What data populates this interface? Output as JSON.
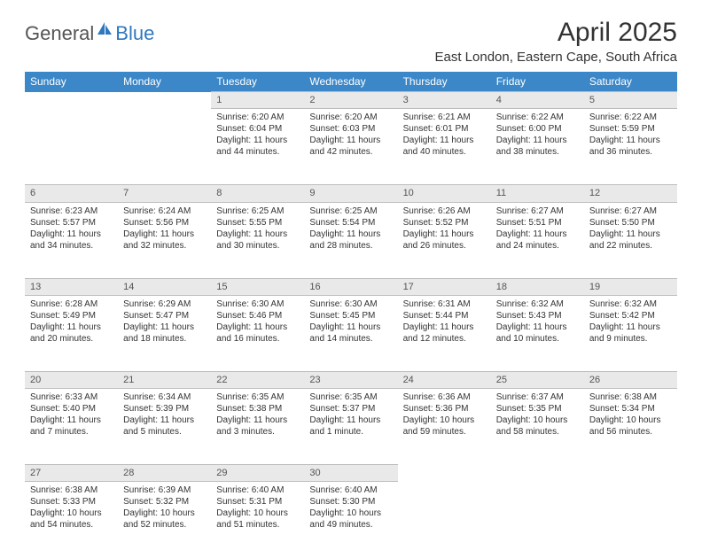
{
  "logo": {
    "text1": "General",
    "text2": "Blue"
  },
  "title": "April 2025",
  "location": "East London, Eastern Cape, South Africa",
  "colors": {
    "header_bg": "#3b87c8",
    "header_fg": "#ffffff",
    "daynum_bg": "#e9e9ea",
    "border": "#bdbdbd",
    "text": "#333333",
    "logo_gray": "#555555",
    "logo_blue": "#2f78bf"
  },
  "day_headers": [
    "Sunday",
    "Monday",
    "Tuesday",
    "Wednesday",
    "Thursday",
    "Friday",
    "Saturday"
  ],
  "weeks": [
    {
      "daynums": [
        "",
        "",
        "1",
        "2",
        "3",
        "4",
        "5"
      ],
      "cells": [
        null,
        null,
        {
          "sunrise": "Sunrise: 6:20 AM",
          "sunset": "Sunset: 6:04 PM",
          "daylight": "Daylight: 11 hours and 44 minutes."
        },
        {
          "sunrise": "Sunrise: 6:20 AM",
          "sunset": "Sunset: 6:03 PM",
          "daylight": "Daylight: 11 hours and 42 minutes."
        },
        {
          "sunrise": "Sunrise: 6:21 AM",
          "sunset": "Sunset: 6:01 PM",
          "daylight": "Daylight: 11 hours and 40 minutes."
        },
        {
          "sunrise": "Sunrise: 6:22 AM",
          "sunset": "Sunset: 6:00 PM",
          "daylight": "Daylight: 11 hours and 38 minutes."
        },
        {
          "sunrise": "Sunrise: 6:22 AM",
          "sunset": "Sunset: 5:59 PM",
          "daylight": "Daylight: 11 hours and 36 minutes."
        }
      ]
    },
    {
      "daynums": [
        "6",
        "7",
        "8",
        "9",
        "10",
        "11",
        "12"
      ],
      "cells": [
        {
          "sunrise": "Sunrise: 6:23 AM",
          "sunset": "Sunset: 5:57 PM",
          "daylight": "Daylight: 11 hours and 34 minutes."
        },
        {
          "sunrise": "Sunrise: 6:24 AM",
          "sunset": "Sunset: 5:56 PM",
          "daylight": "Daylight: 11 hours and 32 minutes."
        },
        {
          "sunrise": "Sunrise: 6:25 AM",
          "sunset": "Sunset: 5:55 PM",
          "daylight": "Daylight: 11 hours and 30 minutes."
        },
        {
          "sunrise": "Sunrise: 6:25 AM",
          "sunset": "Sunset: 5:54 PM",
          "daylight": "Daylight: 11 hours and 28 minutes."
        },
        {
          "sunrise": "Sunrise: 6:26 AM",
          "sunset": "Sunset: 5:52 PM",
          "daylight": "Daylight: 11 hours and 26 minutes."
        },
        {
          "sunrise": "Sunrise: 6:27 AM",
          "sunset": "Sunset: 5:51 PM",
          "daylight": "Daylight: 11 hours and 24 minutes."
        },
        {
          "sunrise": "Sunrise: 6:27 AM",
          "sunset": "Sunset: 5:50 PM",
          "daylight": "Daylight: 11 hours and 22 minutes."
        }
      ]
    },
    {
      "daynums": [
        "13",
        "14",
        "15",
        "16",
        "17",
        "18",
        "19"
      ],
      "cells": [
        {
          "sunrise": "Sunrise: 6:28 AM",
          "sunset": "Sunset: 5:49 PM",
          "daylight": "Daylight: 11 hours and 20 minutes."
        },
        {
          "sunrise": "Sunrise: 6:29 AM",
          "sunset": "Sunset: 5:47 PM",
          "daylight": "Daylight: 11 hours and 18 minutes."
        },
        {
          "sunrise": "Sunrise: 6:30 AM",
          "sunset": "Sunset: 5:46 PM",
          "daylight": "Daylight: 11 hours and 16 minutes."
        },
        {
          "sunrise": "Sunrise: 6:30 AM",
          "sunset": "Sunset: 5:45 PM",
          "daylight": "Daylight: 11 hours and 14 minutes."
        },
        {
          "sunrise": "Sunrise: 6:31 AM",
          "sunset": "Sunset: 5:44 PM",
          "daylight": "Daylight: 11 hours and 12 minutes."
        },
        {
          "sunrise": "Sunrise: 6:32 AM",
          "sunset": "Sunset: 5:43 PM",
          "daylight": "Daylight: 11 hours and 10 minutes."
        },
        {
          "sunrise": "Sunrise: 6:32 AM",
          "sunset": "Sunset: 5:42 PM",
          "daylight": "Daylight: 11 hours and 9 minutes."
        }
      ]
    },
    {
      "daynums": [
        "20",
        "21",
        "22",
        "23",
        "24",
        "25",
        "26"
      ],
      "cells": [
        {
          "sunrise": "Sunrise: 6:33 AM",
          "sunset": "Sunset: 5:40 PM",
          "daylight": "Daylight: 11 hours and 7 minutes."
        },
        {
          "sunrise": "Sunrise: 6:34 AM",
          "sunset": "Sunset: 5:39 PM",
          "daylight": "Daylight: 11 hours and 5 minutes."
        },
        {
          "sunrise": "Sunrise: 6:35 AM",
          "sunset": "Sunset: 5:38 PM",
          "daylight": "Daylight: 11 hours and 3 minutes."
        },
        {
          "sunrise": "Sunrise: 6:35 AM",
          "sunset": "Sunset: 5:37 PM",
          "daylight": "Daylight: 11 hours and 1 minute."
        },
        {
          "sunrise": "Sunrise: 6:36 AM",
          "sunset": "Sunset: 5:36 PM",
          "daylight": "Daylight: 10 hours and 59 minutes."
        },
        {
          "sunrise": "Sunrise: 6:37 AM",
          "sunset": "Sunset: 5:35 PM",
          "daylight": "Daylight: 10 hours and 58 minutes."
        },
        {
          "sunrise": "Sunrise: 6:38 AM",
          "sunset": "Sunset: 5:34 PM",
          "daylight": "Daylight: 10 hours and 56 minutes."
        }
      ]
    },
    {
      "daynums": [
        "27",
        "28",
        "29",
        "30",
        "",
        "",
        ""
      ],
      "cells": [
        {
          "sunrise": "Sunrise: 6:38 AM",
          "sunset": "Sunset: 5:33 PM",
          "daylight": "Daylight: 10 hours and 54 minutes."
        },
        {
          "sunrise": "Sunrise: 6:39 AM",
          "sunset": "Sunset: 5:32 PM",
          "daylight": "Daylight: 10 hours and 52 minutes."
        },
        {
          "sunrise": "Sunrise: 6:40 AM",
          "sunset": "Sunset: 5:31 PM",
          "daylight": "Daylight: 10 hours and 51 minutes."
        },
        {
          "sunrise": "Sunrise: 6:40 AM",
          "sunset": "Sunset: 5:30 PM",
          "daylight": "Daylight: 10 hours and 49 minutes."
        },
        null,
        null,
        null
      ]
    }
  ]
}
